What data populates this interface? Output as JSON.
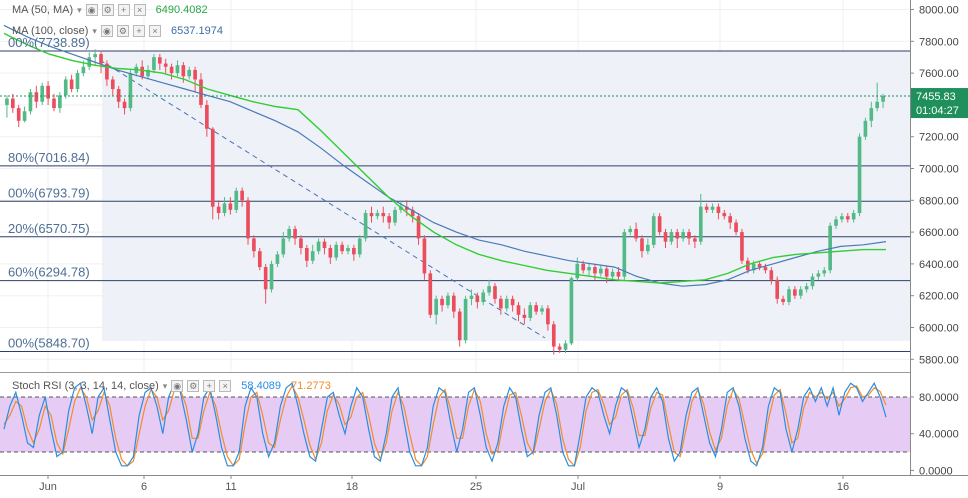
{
  "chart_data": [
    {
      "type": "candlestick",
      "x_ticks": [
        "Jun",
        "6",
        "11",
        "18",
        "25",
        "Jul",
        "9",
        "16"
      ],
      "y_ticks": [
        "5800.00",
        "6000.00",
        "6200.00",
        "6400.00",
        "6600.00",
        "6800.00",
        "7000.00",
        "7200.00",
        "7400.00",
        "7600.00",
        "7800.00",
        "8000.00"
      ],
      "ylim": [
        5720,
        8060
      ],
      "last_price": "7455.83",
      "countdown": "01:04:27",
      "candles": [
        [
          7400,
          7440,
          7320,
          7460
        ],
        [
          7440,
          7380,
          7350,
          7470
        ],
        [
          7380,
          7300,
          7260,
          7400
        ],
        [
          7300,
          7360,
          7290,
          7390
        ],
        [
          7360,
          7480,
          7340,
          7500
        ],
        [
          7480,
          7420,
          7380,
          7520
        ],
        [
          7420,
          7520,
          7400,
          7540
        ],
        [
          7520,
          7440,
          7400,
          7550
        ],
        [
          7440,
          7380,
          7360,
          7470
        ],
        [
          7380,
          7460,
          7350,
          7480
        ],
        [
          7460,
          7560,
          7440,
          7580
        ],
        [
          7560,
          7500,
          7480,
          7590
        ],
        [
          7500,
          7600,
          7480,
          7620
        ],
        [
          7600,
          7640,
          7580,
          7680
        ],
        [
          7640,
          7700,
          7620,
          7730
        ],
        [
          7700,
          7720,
          7650,
          7750
        ],
        [
          7720,
          7660,
          7600,
          7740
        ],
        [
          7660,
          7560,
          7520,
          7680
        ],
        [
          7560,
          7500,
          7460,
          7580
        ],
        [
          7500,
          7420,
          7380,
          7520
        ],
        [
          7420,
          7380,
          7340,
          7440
        ],
        [
          7380,
          7600,
          7360,
          7620
        ],
        [
          7600,
          7640,
          7580,
          7660
        ],
        [
          7640,
          7580,
          7560,
          7680
        ],
        [
          7580,
          7620,
          7560,
          7650
        ],
        [
          7620,
          7700,
          7600,
          7720
        ],
        [
          7700,
          7660,
          7620,
          7720
        ],
        [
          7660,
          7640,
          7600,
          7690
        ],
        [
          7640,
          7600,
          7560,
          7660
        ],
        [
          7600,
          7650,
          7580,
          7680
        ],
        [
          7650,
          7580,
          7540,
          7670
        ],
        [
          7580,
          7620,
          7560,
          7640
        ],
        [
          7620,
          7560,
          7480,
          7640
        ],
        [
          7560,
          7400,
          7380,
          7600
        ],
        [
          7400,
          7250,
          7200,
          7430
        ],
        [
          7250,
          6760,
          6680,
          7260
        ],
        [
          6760,
          6720,
          6680,
          6800
        ],
        [
          6720,
          6780,
          6700,
          6820
        ],
        [
          6780,
          6740,
          6710,
          6820
        ],
        [
          6740,
          6860,
          6720,
          6880
        ],
        [
          6860,
          6800,
          6760,
          6880
        ],
        [
          6800,
          6560,
          6520,
          6820
        ],
        [
          6560,
          6480,
          6440,
          6580
        ],
        [
          6480,
          6380,
          6360,
          6500
        ],
        [
          6380,
          6240,
          6150,
          6400
        ],
        [
          6240,
          6400,
          6220,
          6420
        ],
        [
          6400,
          6460,
          6380,
          6480
        ],
        [
          6460,
          6560,
          6440,
          6600
        ],
        [
          6560,
          6620,
          6540,
          6640
        ],
        [
          6620,
          6560,
          6520,
          6640
        ],
        [
          6560,
          6500,
          6460,
          6580
        ],
        [
          6500,
          6420,
          6380,
          6520
        ],
        [
          6420,
          6480,
          6400,
          6520
        ],
        [
          6480,
          6540,
          6460,
          6560
        ],
        [
          6540,
          6500,
          6460,
          6560
        ],
        [
          6500,
          6440,
          6400,
          6520
        ],
        [
          6440,
          6520,
          6420,
          6540
        ],
        [
          6520,
          6480,
          6460,
          6540
        ],
        [
          6480,
          6500,
          6460,
          6520
        ],
        [
          6500,
          6460,
          6420,
          6520
        ],
        [
          6460,
          6560,
          6440,
          6580
        ],
        [
          6560,
          6720,
          6540,
          6740
        ],
        [
          6720,
          6700,
          6660,
          6760
        ],
        [
          6700,
          6720,
          6680,
          6740
        ],
        [
          6720,
          6700,
          6660,
          6760
        ],
        [
          6700,
          6660,
          6620,
          6720
        ],
        [
          6660,
          6740,
          6640,
          6760
        ],
        [
          6740,
          6760,
          6720,
          6800
        ],
        [
          6760,
          6740,
          6700,
          6800
        ],
        [
          6740,
          6700,
          6660,
          6760
        ],
        [
          6700,
          6560,
          6520,
          6720
        ],
        [
          6560,
          6340,
          6300,
          6580
        ],
        [
          6340,
          6080,
          6060,
          6360
        ],
        [
          6080,
          6180,
          6020,
          6200
        ],
        [
          6180,
          6140,
          6100,
          6200
        ],
        [
          6140,
          6200,
          6120,
          6220
        ],
        [
          6200,
          6100,
          6060,
          6220
        ],
        [
          6100,
          5920,
          5880,
          6120
        ],
        [
          5920,
          6180,
          5900,
          6200
        ],
        [
          6180,
          6200,
          6140,
          6240
        ],
        [
          6200,
          6160,
          6120,
          6220
        ],
        [
          6160,
          6220,
          6140,
          6240
        ],
        [
          6220,
          6260,
          6200,
          6300
        ],
        [
          6260,
          6180,
          6150,
          6280
        ],
        [
          6180,
          6120,
          6080,
          6200
        ],
        [
          6120,
          6180,
          6100,
          6200
        ],
        [
          6180,
          6140,
          6100,
          6200
        ],
        [
          6140,
          6080,
          6040,
          6160
        ],
        [
          6080,
          6060,
          6020,
          6120
        ],
        [
          6060,
          6140,
          6040,
          6160
        ],
        [
          6140,
          6100,
          6080,
          6160
        ],
        [
          6100,
          6120,
          6080,
          6140
        ],
        [
          6120,
          6020,
          5980,
          6140
        ],
        [
          6020,
          5880,
          5830,
          6040
        ],
        [
          5880,
          5860,
          5840,
          5900
        ],
        [
          5860,
          5900,
          5840,
          5920
        ],
        [
          5900,
          6310,
          5890,
          6320
        ],
        [
          6310,
          6400,
          6290,
          6440
        ],
        [
          6400,
          6360,
          6340,
          6420
        ],
        [
          6360,
          6380,
          6320,
          6400
        ],
        [
          6380,
          6340,
          6300,
          6400
        ],
        [
          6340,
          6370,
          6320,
          6390
        ],
        [
          6370,
          6320,
          6280,
          6390
        ],
        [
          6320,
          6350,
          6300,
          6370
        ],
        [
          6350,
          6320,
          6290,
          6380
        ],
        [
          6320,
          6600,
          6300,
          6620
        ],
        [
          6600,
          6620,
          6580,
          6640
        ],
        [
          6620,
          6560,
          6540,
          6660
        ],
        [
          6560,
          6480,
          6440,
          6580
        ],
        [
          6480,
          6520,
          6460,
          6560
        ],
        [
          6520,
          6700,
          6500,
          6720
        ],
        [
          6700,
          6600,
          6580,
          6720
        ],
        [
          6600,
          6540,
          6500,
          6620
        ],
        [
          6540,
          6600,
          6520,
          6620
        ],
        [
          6600,
          6560,
          6500,
          6620
        ],
        [
          6560,
          6600,
          6540,
          6620
        ],
        [
          6600,
          6560,
          6520,
          6620
        ],
        [
          6560,
          6540,
          6500,
          6580
        ],
        [
          6540,
          6760,
          6520,
          6840
        ],
        [
          6760,
          6740,
          6720,
          6780
        ],
        [
          6740,
          6760,
          6720,
          6780
        ],
        [
          6760,
          6720,
          6680,
          6780
        ],
        [
          6720,
          6700,
          6680,
          6740
        ],
        [
          6700,
          6660,
          6620,
          6720
        ],
        [
          6660,
          6600,
          6580,
          6680
        ],
        [
          6600,
          6420,
          6400,
          6620
        ],
        [
          6420,
          6360,
          6340,
          6440
        ],
        [
          6360,
          6400,
          6340,
          6420
        ],
        [
          6400,
          6380,
          6360,
          6420
        ],
        [
          6380,
          6360,
          6340,
          6400
        ],
        [
          6360,
          6300,
          6270,
          6380
        ],
        [
          6300,
          6180,
          6150,
          6320
        ],
        [
          6180,
          6160,
          6140,
          6200
        ],
        [
          6160,
          6240,
          6140,
          6260
        ],
        [
          6240,
          6200,
          6180,
          6260
        ],
        [
          6200,
          6240,
          6180,
          6260
        ],
        [
          6240,
          6260,
          6220,
          6280
        ],
        [
          6260,
          6320,
          6240,
          6340
        ],
        [
          6320,
          6340,
          6300,
          6360
        ],
        [
          6340,
          6360,
          6320,
          6380
        ],
        [
          6360,
          6640,
          6340,
          6660
        ],
        [
          6640,
          6680,
          6620,
          6700
        ],
        [
          6680,
          6700,
          6660,
          6720
        ],
        [
          6700,
          6680,
          6660,
          6720
        ],
        [
          6680,
          6720,
          6660,
          6740
        ],
        [
          6720,
          7200,
          6700,
          7220
        ],
        [
          7200,
          7300,
          7180,
          7320
        ],
        [
          7300,
          7380,
          7260,
          7420
        ],
        [
          7380,
          7420,
          7360,
          7540
        ],
        [
          7420,
          7456,
          7380,
          7470
        ]
      ],
      "ma50": [
        7850,
        7780,
        7720,
        7680,
        7650,
        7630,
        7620,
        7600,
        7560,
        7500,
        7460,
        7420,
        7390,
        7370,
        7240,
        7100,
        6960,
        6820,
        6700,
        6600,
        6520,
        6460,
        6420,
        6390,
        6360,
        6340,
        6320,
        6300,
        6290,
        6280,
        6290,
        6300,
        6340,
        6400,
        6440,
        6460,
        6470,
        6480,
        6490,
        6490
      ],
      "ma100": [
        7900,
        7830,
        7770,
        7720,
        7670,
        7620,
        7580,
        7540,
        7500,
        7460,
        7420,
        7360,
        7300,
        7230,
        7130,
        7020,
        6920,
        6820,
        6740,
        6660,
        6600,
        6550,
        6520,
        6480,
        6450,
        6420,
        6400,
        6380,
        6320,
        6280,
        6260,
        6270,
        6300,
        6360,
        6400,
        6440,
        6480,
        6510,
        6520,
        6540
      ],
      "legend": {
        "ma50_name": "MA (50, MA)",
        "ma50_value": "6490.4082",
        "ma100_name": "MA (100, close)",
        "ma100_value": "6537.1974"
      },
      "fib_levels": [
        {
          "label": "00%(7738.89)",
          "value": 7738.89
        },
        {
          "label": "80%(7016.84)",
          "value": 7016.84
        },
        {
          "label": "00%(6793.79)",
          "value": 6793.79
        },
        {
          "label": "20%(6570.75)",
          "value": 6570.75
        },
        {
          "label": "60%(6294.78)",
          "value": 6294.78
        },
        {
          "label": "00%(5848.70)",
          "value": 5848.7
        }
      ],
      "colors": {
        "up": "#53b987",
        "down": "#eb4d5c",
        "ma50": "#32cd32",
        "ma100": "#4a7ab8",
        "fib": "#2f3f6b",
        "current": "#1f8f5c"
      }
    },
    {
      "type": "line",
      "legend": {
        "name": "Stoch RSI (3, 3, 14, 14, close)",
        "k_value": "58.4089",
        "d_value": "71.2773"
      },
      "y_ticks": [
        "0.0000",
        "40.0000",
        "80.0000"
      ],
      "ylim": [
        -5,
        105
      ],
      "band": [
        20,
        80
      ],
      "k": [
        45,
        70,
        85,
        60,
        30,
        25,
        60,
        80,
        45,
        15,
        20,
        65,
        90,
        95,
        70,
        40,
        80,
        90,
        55,
        20,
        5,
        5,
        15,
        60,
        85,
        90,
        70,
        40,
        80,
        95,
        85,
        55,
        20,
        40,
        80,
        90,
        60,
        25,
        5,
        5,
        20,
        70,
        90,
        80,
        40,
        15,
        30,
        70,
        90,
        95,
        70,
        40,
        15,
        10,
        45,
        80,
        85,
        60,
        40,
        70,
        90,
        80,
        45,
        15,
        10,
        40,
        80,
        90,
        55,
        20,
        5,
        5,
        25,
        70,
        90,
        85,
        50,
        20,
        45,
        85,
        90,
        60,
        25,
        10,
        30,
        70,
        90,
        80,
        45,
        15,
        20,
        60,
        85,
        90,
        60,
        20,
        5,
        5,
        40,
        80,
        90,
        85,
        60,
        40,
        70,
        90,
        85,
        55,
        25,
        45,
        80,
        90,
        75,
        35,
        10,
        20,
        60,
        85,
        90,
        60,
        30,
        15,
        45,
        85,
        90,
        70,
        35,
        10,
        5,
        25,
        70,
        90,
        85,
        45,
        20,
        45,
        80,
        90,
        75,
        90,
        70,
        90,
        60,
        85,
        95,
        90,
        75,
        85,
        95,
        80,
        58
      ],
      "d": [
        50,
        60,
        75,
        70,
        45,
        30,
        45,
        70,
        60,
        30,
        18,
        45,
        75,
        90,
        80,
        55,
        65,
        85,
        70,
        35,
        12,
        5,
        10,
        40,
        70,
        88,
        80,
        55,
        65,
        88,
        88,
        70,
        35,
        35,
        65,
        85,
        70,
        40,
        15,
        5,
        12,
        50,
        80,
        85,
        60,
        30,
        25,
        55,
        80,
        92,
        80,
        55,
        28,
        12,
        30,
        65,
        82,
        72,
        50,
        58,
        80,
        85,
        60,
        30,
        12,
        30,
        65,
        85,
        70,
        40,
        12,
        5,
        15,
        50,
        80,
        88,
        65,
        35,
        35,
        70,
        88,
        75,
        40,
        18,
        22,
        55,
        82,
        85,
        60,
        30,
        18,
        45,
        75,
        88,
        72,
        35,
        12,
        5,
        25,
        65,
        85,
        88,
        72,
        50,
        58,
        82,
        88,
        68,
        38,
        38,
        68,
        85,
        82,
        50,
        20,
        15,
        45,
        75,
        88,
        72,
        42,
        22,
        35,
        70,
        88,
        78,
        50,
        22,
        8,
        18,
        55,
        82,
        88,
        62,
        30,
        35,
        68,
        85,
        80,
        85,
        78,
        85,
        70,
        78,
        90,
        92,
        80,
        82,
        90,
        86,
        71
      ]
    }
  ]
}
